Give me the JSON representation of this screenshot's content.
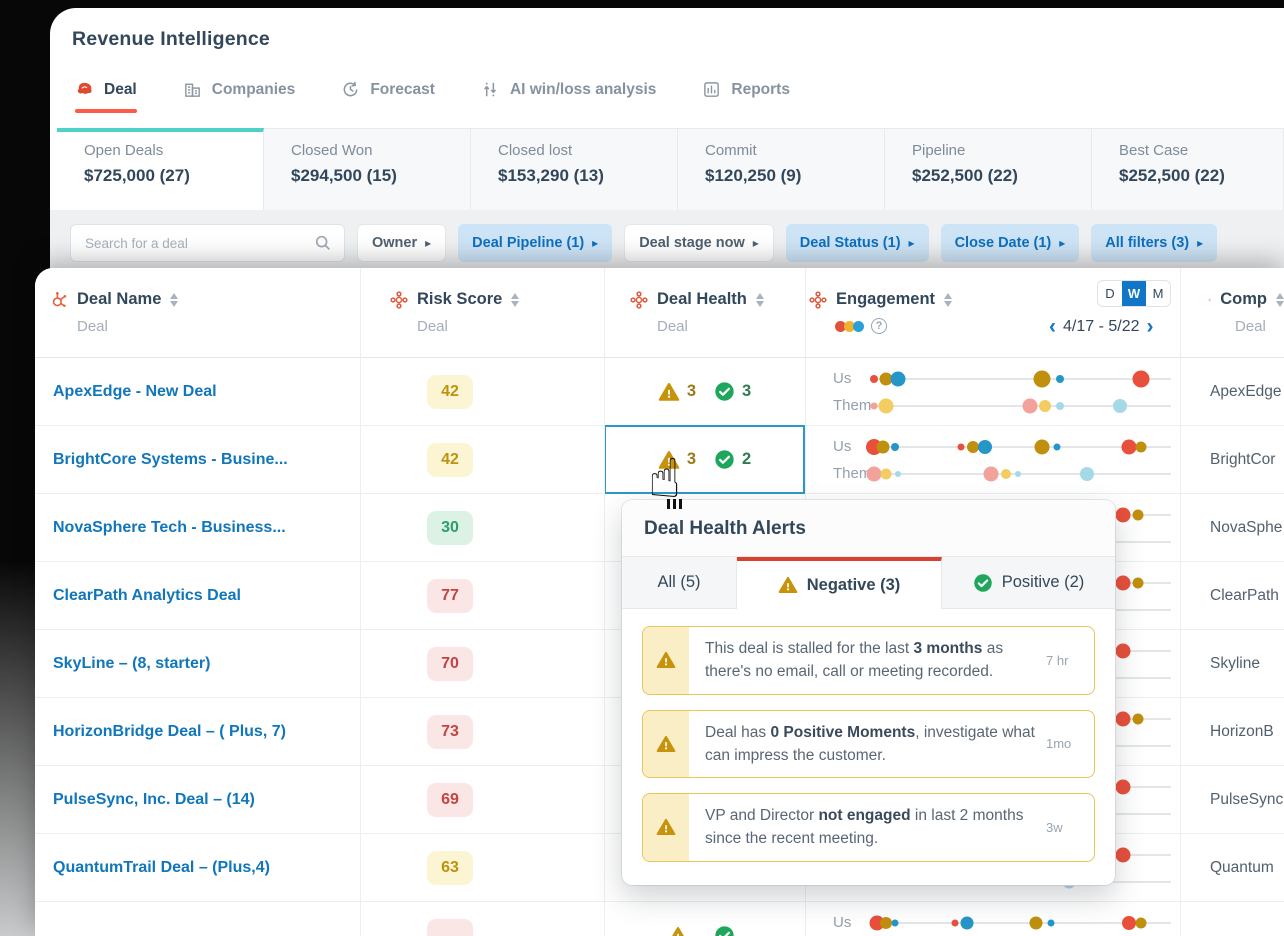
{
  "header": {
    "title": "Revenue Intelligence",
    "tabs": [
      {
        "label": "Deal",
        "icon": "deal-logo",
        "active": true
      },
      {
        "label": "Companies",
        "icon": "companies",
        "active": false
      },
      {
        "label": "Forecast",
        "icon": "forecast",
        "active": false
      },
      {
        "label": "AI win/loss analysis",
        "icon": "ai-analysis",
        "active": false
      },
      {
        "label": "Reports",
        "icon": "reports",
        "active": false
      }
    ]
  },
  "summary_cards": [
    {
      "label": "Open Deals",
      "value": "$725,000 (27)",
      "active": true
    },
    {
      "label": "Closed Won",
      "value": "$294,500 (15)",
      "active": false
    },
    {
      "label": "Closed lost",
      "value": "$153,290 (13)",
      "active": false
    },
    {
      "label": "Commit",
      "value": "$120,250 (9)",
      "active": false
    },
    {
      "label": "Pipeline",
      "value": "$252,500 (22)",
      "active": false
    },
    {
      "label": "Best Case",
      "value": "$252,500 (22)",
      "active": false
    }
  ],
  "filters": {
    "search_placeholder": "Search for a deal",
    "chips": [
      {
        "label": "Owner",
        "active": false
      },
      {
        "label": "Deal Pipeline (1)",
        "active": true
      },
      {
        "label": "Deal stage now",
        "active": false
      },
      {
        "label": "Deal Status (1)",
        "active": true
      },
      {
        "label": "Close Date (1)",
        "active": true
      },
      {
        "label": "All filters (3)",
        "active": true
      }
    ]
  },
  "table": {
    "columns": [
      {
        "label": "Deal Name",
        "sub": "Deal",
        "icon": "hubspot"
      },
      {
        "label": "Risk Score",
        "sub": "Deal",
        "icon": "score"
      },
      {
        "label": "Deal Health",
        "sub": "Deal",
        "icon": "score"
      },
      {
        "label": "Engagement",
        "sub": "",
        "icon": "score"
      },
      {
        "label": "Comp",
        "sub": "Deal",
        "icon": "hubspot"
      }
    ],
    "engagement_header": {
      "toggle": [
        "D",
        "W",
        "M"
      ],
      "toggle_active": "W",
      "date_range": "4/17 - 5/22",
      "legend_colors": [
        "#e2503c",
        "#eeb22c",
        "#2a9fd8"
      ]
    },
    "engagement_labels": [
      "Us",
      "Them"
    ],
    "palette": {
      "red": "#e8503c",
      "olive": "#c08f0e",
      "blue": "#2596c8",
      "pink": "#f2a19b",
      "yellow": "#f3cd61",
      "lightblue": "#a6d9e8"
    },
    "rows": [
      {
        "deal": "ApexEdge - New Deal",
        "risk": "42",
        "risk_level": "yellow",
        "health": {
          "neg": "3",
          "pos": "3"
        },
        "company": "ApexEdge",
        "selected": false,
        "us": [
          {
            "p": 1,
            "c": "red",
            "s": 8
          },
          {
            "p": 5,
            "c": "olive",
            "s": 13
          },
          {
            "p": 9,
            "c": "blue",
            "s": 15
          },
          {
            "p": 57,
            "c": "olive",
            "s": 17
          },
          {
            "p": 63,
            "c": "blue",
            "s": 8
          },
          {
            "p": 90,
            "c": "red",
            "s": 17
          }
        ],
        "them": [
          {
            "p": 1,
            "c": "pink",
            "s": 7
          },
          {
            "p": 5,
            "c": "yellow",
            "s": 15
          },
          {
            "p": 53,
            "c": "pink",
            "s": 15
          },
          {
            "p": 58,
            "c": "yellow",
            "s": 12
          },
          {
            "p": 63,
            "c": "lightblue",
            "s": 8
          },
          {
            "p": 83,
            "c": "lightblue",
            "s": 14
          }
        ]
      },
      {
        "deal": "BrightCore Systems - Busine...",
        "risk": "42",
        "risk_level": "yellow",
        "health": {
          "neg": "3",
          "pos": "2"
        },
        "company": "BrightCor",
        "selected": true,
        "us": [
          {
            "p": 1,
            "c": "red",
            "s": 16
          },
          {
            "p": 4,
            "c": "olive",
            "s": 13
          },
          {
            "p": 8,
            "c": "blue",
            "s": 8
          },
          {
            "p": 30,
            "c": "red",
            "s": 7
          },
          {
            "p": 34,
            "c": "olive",
            "s": 12
          },
          {
            "p": 38,
            "c": "blue",
            "s": 14
          },
          {
            "p": 57,
            "c": "olive",
            "s": 15
          },
          {
            "p": 62,
            "c": "blue",
            "s": 7
          },
          {
            "p": 86,
            "c": "red",
            "s": 15
          },
          {
            "p": 90,
            "c": "olive",
            "s": 11
          }
        ],
        "them": [
          {
            "p": 1,
            "c": "pink",
            "s": 15
          },
          {
            "p": 5,
            "c": "yellow",
            "s": 11
          },
          {
            "p": 9,
            "c": "lightblue",
            "s": 6
          },
          {
            "p": 40,
            "c": "pink",
            "s": 15
          },
          {
            "p": 45,
            "c": "yellow",
            "s": 10
          },
          {
            "p": 49,
            "c": "lightblue",
            "s": 6
          },
          {
            "p": 72,
            "c": "lightblue",
            "s": 14
          }
        ]
      },
      {
        "deal": "NovaSphere Tech - Business...",
        "risk": "30",
        "risk_level": "green",
        "health": null,
        "company": "NovaSphe",
        "selected": false,
        "us": [
          {
            "p": 84,
            "c": "red",
            "s": 15
          },
          {
            "p": 89,
            "c": "olive",
            "s": 11
          }
        ],
        "them": []
      },
      {
        "deal": "ClearPath Analytics Deal",
        "risk": "77",
        "risk_level": "red",
        "health": null,
        "company": "ClearPath",
        "selected": false,
        "us": [
          {
            "p": 84,
            "c": "red",
            "s": 15
          },
          {
            "p": 89,
            "c": "olive",
            "s": 11
          }
        ],
        "them": []
      },
      {
        "deal": "SkyLine – (8, starter)",
        "risk": "70",
        "risk_level": "red",
        "health": null,
        "company": "Skyline",
        "selected": false,
        "us": [
          {
            "p": 84,
            "c": "red",
            "s": 15
          }
        ],
        "them": []
      },
      {
        "deal": "HorizonBridge Deal – ( Plus, 7)",
        "risk": "73",
        "risk_level": "red",
        "health": null,
        "company": "HorizonB",
        "selected": false,
        "us": [
          {
            "p": 84,
            "c": "red",
            "s": 15
          },
          {
            "p": 89,
            "c": "olive",
            "s": 11
          }
        ],
        "them": []
      },
      {
        "deal": "PulseSync, Inc. Deal – (14)",
        "risk": "69",
        "risk_level": "red",
        "health": null,
        "company": "PulseSync",
        "selected": false,
        "us": [
          {
            "p": 84,
            "c": "red",
            "s": 15
          }
        ],
        "them": []
      },
      {
        "deal": "QuantumTrail Deal – (Plus,4)",
        "risk": "63",
        "risk_level": "yellow",
        "health": null,
        "company": "Quantum",
        "selected": false,
        "us": [
          {
            "p": 84,
            "c": "red",
            "s": 15
          }
        ],
        "them": [
          {
            "p": 66,
            "c": "lightblue",
            "s": 13
          }
        ]
      },
      {
        "deal": "",
        "risk": "",
        "risk_level": "red",
        "health": {
          "neg": "",
          "pos": ""
        },
        "company": "",
        "selected": false,
        "us": [
          {
            "p": 2,
            "c": "red",
            "s": 15
          },
          {
            "p": 5,
            "c": "olive",
            "s": 12
          },
          {
            "p": 8,
            "c": "blue",
            "s": 7
          },
          {
            "p": 28,
            "c": "red",
            "s": 7
          },
          {
            "p": 32,
            "c": "blue",
            "s": 13
          },
          {
            "p": 55,
            "c": "olive",
            "s": 13
          },
          {
            "p": 60,
            "c": "blue",
            "s": 7
          },
          {
            "p": 86,
            "c": "red",
            "s": 14
          },
          {
            "p": 90,
            "c": "olive",
            "s": 11
          }
        ],
        "them": []
      }
    ]
  },
  "popup": {
    "title": "Deal Health Alerts",
    "tabs": [
      {
        "label": "All (5)",
        "icon": "",
        "active": false
      },
      {
        "label": "Negative (3)",
        "icon": "warning",
        "active": true
      },
      {
        "label": "Positive (2)",
        "icon": "check",
        "active": false
      }
    ],
    "alerts": [
      {
        "time": "7 hr",
        "segments": [
          {
            "t": "This deal is stalled for the last "
          },
          {
            "t": "3 months",
            "b": true
          },
          {
            "t": " as there's no email, call or meeting recorded."
          }
        ]
      },
      {
        "time": "1mo",
        "segments": [
          {
            "t": "Deal has "
          },
          {
            "t": "0 Positive Moments",
            "b": true
          },
          {
            "t": ", investigate what can impress the customer."
          }
        ]
      },
      {
        "time": "3w",
        "segments": [
          {
            "t": "VP and Director "
          },
          {
            "t": "not engaged",
            "b": true
          },
          {
            "t": " in last 2 months since the recent meeting."
          }
        ]
      }
    ]
  },
  "colors": {
    "accent_red": "#ff5a46",
    "teal": "#4ed2c6",
    "link_blue": "#1176ba",
    "chip_blue_bg": "#cde4f6",
    "chip_blue_text": "#0d6fc0",
    "selection_blue": "#2f96ca",
    "warning_gold": "#c7930b",
    "positive_green": "#1ea75c",
    "tab_active_red": "#d8402f",
    "toggle_blue": "#1176c8"
  }
}
